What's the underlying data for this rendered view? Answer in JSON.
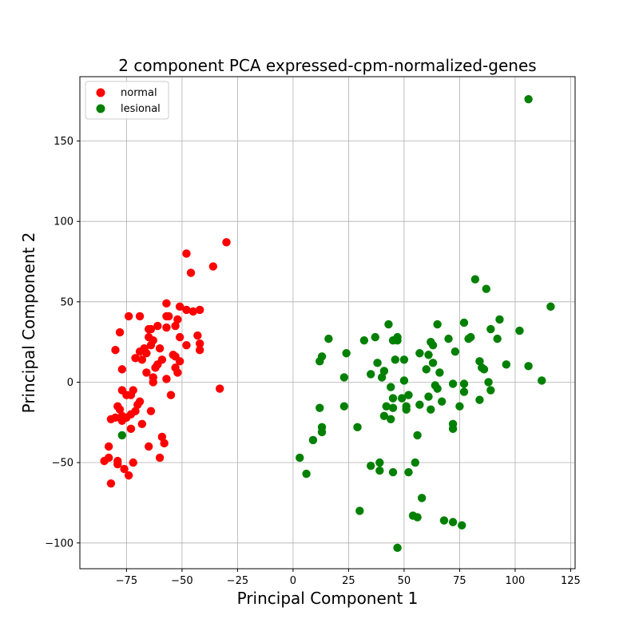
{
  "chart_data": {
    "type": "scatter",
    "title": "2 component PCA expressed-cpm-normalized-genes",
    "xlabel": "Principal Component 1",
    "ylabel": "Principal Component 2",
    "xlim": [
      -96,
      127
    ],
    "ylim": [
      -116,
      190
    ],
    "xticks": [
      -75,
      -50,
      -25,
      0,
      25,
      50,
      75,
      100,
      125
    ],
    "yticks": [
      -100,
      -50,
      0,
      50,
      100,
      150
    ],
    "xtick_labels": [
      "−75",
      "−50",
      "−25",
      "0",
      "25",
      "50",
      "75",
      "100",
      "125"
    ],
    "ytick_labels": [
      "−100",
      "−50",
      "0",
      "50",
      "100",
      "150"
    ],
    "grid": true,
    "legend_position": "top-left",
    "series": [
      {
        "name": "normal",
        "color": "#ff0000",
        "points": [
          [
            -85,
            -49
          ],
          [
            -83,
            -40
          ],
          [
            -83,
            -47
          ],
          [
            -82,
            -23
          ],
          [
            -82,
            -63
          ],
          [
            -80,
            20
          ],
          [
            -80,
            -22
          ],
          [
            -79,
            -51
          ],
          [
            -79,
            -49
          ],
          [
            -79,
            -15
          ],
          [
            -78,
            -17
          ],
          [
            -78,
            31
          ],
          [
            -77,
            -5
          ],
          [
            -77,
            8
          ],
          [
            -77,
            -21
          ],
          [
            -77,
            -24
          ],
          [
            -76,
            -54
          ],
          [
            -75,
            -8
          ],
          [
            -75,
            -22
          ],
          [
            -74,
            -58
          ],
          [
            -74,
            41
          ],
          [
            -73,
            -8
          ],
          [
            -73,
            -20
          ],
          [
            -73,
            -29
          ],
          [
            -72,
            -5
          ],
          [
            -72,
            -50
          ],
          [
            -71,
            -18
          ],
          [
            -71,
            15
          ],
          [
            -70,
            -14
          ],
          [
            -69,
            -12
          ],
          [
            -69,
            41
          ],
          [
            -69,
            19
          ],
          [
            -68,
            14
          ],
          [
            -68,
            -26
          ],
          [
            -67,
            21
          ],
          [
            -66,
            6
          ],
          [
            -66,
            18
          ],
          [
            -65,
            28
          ],
          [
            -65,
            33
          ],
          [
            -65,
            -40
          ],
          [
            -64,
            -18
          ],
          [
            -64,
            23
          ],
          [
            -64,
            33
          ],
          [
            -63,
            26
          ],
          [
            -63,
            3
          ],
          [
            -63,
            0
          ],
          [
            -62,
            9
          ],
          [
            -61,
            35
          ],
          [
            -61,
            11
          ],
          [
            -60,
            -47
          ],
          [
            -60,
            21
          ],
          [
            -59,
            -34
          ],
          [
            -59,
            14
          ],
          [
            -58,
            -38
          ],
          [
            -57,
            49
          ],
          [
            -57,
            41
          ],
          [
            -57,
            34
          ],
          [
            -57,
            2
          ],
          [
            -56,
            41
          ],
          [
            -55,
            -8
          ],
          [
            -54,
            17
          ],
          [
            -53,
            35
          ],
          [
            -53,
            16
          ],
          [
            -53,
            9
          ],
          [
            -52,
            39
          ],
          [
            -52,
            6
          ],
          [
            -51,
            28
          ],
          [
            -51,
            47
          ],
          [
            -51,
            13
          ],
          [
            -48,
            80
          ],
          [
            -48,
            23
          ],
          [
            -48,
            45
          ],
          [
            -46,
            68
          ],
          [
            -45,
            44
          ],
          [
            -43,
            29
          ],
          [
            -42,
            45
          ],
          [
            -42,
            24
          ],
          [
            -42,
            20
          ],
          [
            -36,
            72
          ],
          [
            -33,
            -4
          ],
          [
            -30,
            87
          ]
        ]
      },
      {
        "name": "lesional",
        "color": "#008000",
        "points": [
          [
            -77,
            -33
          ],
          [
            3,
            -47
          ],
          [
            6,
            -57
          ],
          [
            9,
            -36
          ],
          [
            12,
            13
          ],
          [
            12,
            -16
          ],
          [
            13,
            16
          ],
          [
            13,
            -28
          ],
          [
            13,
            -31
          ],
          [
            16,
            27
          ],
          [
            23,
            3
          ],
          [
            23,
            -15
          ],
          [
            24,
            18
          ],
          [
            29,
            -28
          ],
          [
            30,
            -80
          ],
          [
            32,
            26
          ],
          [
            35,
            5
          ],
          [
            35,
            -52
          ],
          [
            37,
            28
          ],
          [
            38,
            12
          ],
          [
            39,
            -50
          ],
          [
            39,
            -55
          ],
          [
            40,
            3
          ],
          [
            41,
            7
          ],
          [
            41,
            -21
          ],
          [
            42,
            -15
          ],
          [
            43,
            36
          ],
          [
            44,
            -3
          ],
          [
            44,
            -23
          ],
          [
            45,
            26
          ],
          [
            45,
            -10
          ],
          [
            45,
            -16
          ],
          [
            45,
            -56
          ],
          [
            46,
            14
          ],
          [
            47,
            28
          ],
          [
            47,
            26
          ],
          [
            47,
            -103
          ],
          [
            49,
            -10
          ],
          [
            50,
            1
          ],
          [
            50,
            14
          ],
          [
            51,
            -15
          ],
          [
            51,
            -17
          ],
          [
            52,
            -8
          ],
          [
            52,
            -56
          ],
          [
            54,
            -83
          ],
          [
            55,
            -50
          ],
          [
            56,
            -33
          ],
          [
            56,
            -84
          ],
          [
            57,
            18
          ],
          [
            57,
            -14
          ],
          [
            58,
            -72
          ],
          [
            60,
            8
          ],
          [
            61,
            -9
          ],
          [
            61,
            17
          ],
          [
            62,
            25
          ],
          [
            62,
            -17
          ],
          [
            63,
            23
          ],
          [
            63,
            12
          ],
          [
            64,
            -2
          ],
          [
            65,
            36
          ],
          [
            65,
            -4
          ],
          [
            66,
            6
          ],
          [
            67,
            -12
          ],
          [
            68,
            -86
          ],
          [
            70,
            27
          ],
          [
            72,
            -1
          ],
          [
            72,
            -26
          ],
          [
            72,
            -29
          ],
          [
            72,
            -87
          ],
          [
            73,
            19
          ],
          [
            75,
            -15
          ],
          [
            76,
            -89
          ],
          [
            77,
            37
          ],
          [
            77,
            -6
          ],
          [
            77,
            -1
          ],
          [
            79,
            27
          ],
          [
            80,
            28
          ],
          [
            82,
            64
          ],
          [
            84,
            -11
          ],
          [
            84,
            13
          ],
          [
            85,
            9
          ],
          [
            86,
            8
          ],
          [
            87,
            58
          ],
          [
            88,
            0
          ],
          [
            89,
            -5
          ],
          [
            89,
            33
          ],
          [
            92,
            27
          ],
          [
            93,
            39
          ],
          [
            96,
            11
          ],
          [
            102,
            32
          ],
          [
            106,
            176
          ],
          [
            106,
            10
          ],
          [
            112,
            1
          ],
          [
            116,
            47
          ]
        ]
      }
    ]
  }
}
